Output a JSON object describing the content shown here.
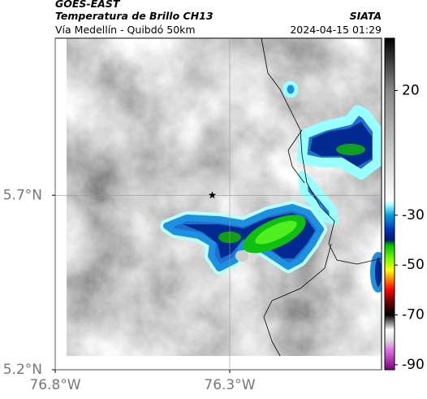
{
  "header": {
    "satellite": "GOES-EAST",
    "product": "Temperatura de Brillo CH13",
    "source": "SIATA",
    "region": "Vía Medellín - Quibdó 50km",
    "timestamp": "2024-04-15 01:29"
  },
  "map": {
    "xlim": [
      -76.8,
      -75.865
    ],
    "ylim": [
      5.2,
      6.15
    ],
    "xticks": [
      {
        "value": -76.8,
        "label": "76.8°W"
      },
      {
        "value": -76.3,
        "label": "76.3°W"
      }
    ],
    "yticks": [
      {
        "value": 5.2,
        "label": "5.2°N"
      },
      {
        "value": 5.7,
        "label": "5.7°N"
      }
    ],
    "grid": true,
    "marker": {
      "lon": -76.35,
      "lat": 5.7
    }
  },
  "colorbar": {
    "clim": [
      -92,
      41
    ],
    "ticks": [
      20,
      -30,
      -50,
      -70,
      -90
    ]
  }
}
